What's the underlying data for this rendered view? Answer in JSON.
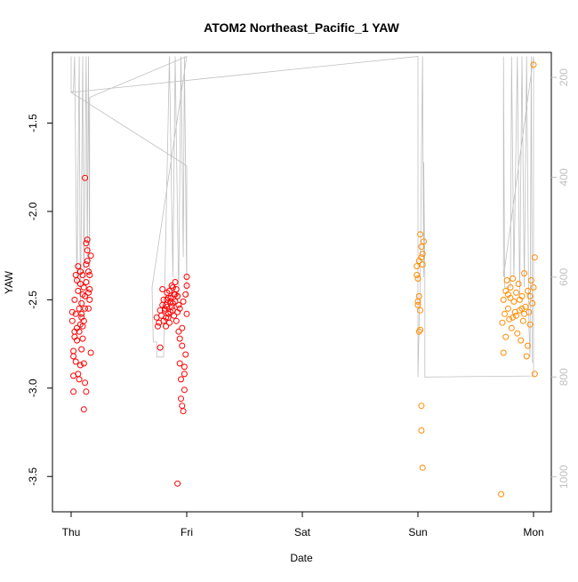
{
  "chart_data": {
    "type": "scatter",
    "title": "ATOM2 Northeast_Pacific_1 YAW",
    "xlabel": "Date",
    "ylabel": "YAW",
    "x_ticks": [
      "Thu",
      "Fri",
      "Sat",
      "Sun",
      "Mon"
    ],
    "xlim": [
      0,
      4.15
    ],
    "ylim": [
      -3.7,
      -1.1
    ],
    "y_ticks": [
      "-1.5",
      "-2.0",
      "-2.5",
      "-3.0",
      "-3.5"
    ],
    "y_tick_values": [
      -1.5,
      -2.0,
      -2.5,
      -3.0,
      -3.5
    ],
    "y2_ticks": [
      "200",
      "400",
      "600",
      "800",
      "1000"
    ],
    "y2_tick_values": [
      200,
      400,
      600,
      800,
      1000
    ],
    "y2lim": [
      150,
      1070
    ],
    "grid": false,
    "colors": {
      "red": "#ff0000",
      "orange": "#ff8c00",
      "line": "#c0c0c0"
    },
    "series": [
      {
        "color": "#ff0000",
        "points": [
          [
            0.01,
            -2.57
          ],
          [
            0.01,
            -2.62
          ],
          [
            0.02,
            -2.79
          ],
          [
            0.02,
            -2.82
          ],
          [
            0.02,
            -2.93
          ],
          [
            0.02,
            -3.02
          ],
          [
            0.03,
            -2.68
          ],
          [
            0.03,
            -2.71
          ],
          [
            0.03,
            -2.5
          ],
          [
            0.04,
            -2.36
          ],
          [
            0.04,
            -2.58
          ],
          [
            0.04,
            -2.85
          ],
          [
            0.05,
            -2.39
          ],
          [
            0.05,
            -2.66
          ],
          [
            0.05,
            -2.73
          ],
          [
            0.06,
            -2.45
          ],
          [
            0.06,
            -2.31
          ],
          [
            0.06,
            -2.92
          ],
          [
            0.07,
            -2.55
          ],
          [
            0.07,
            -2.68
          ],
          [
            0.07,
            -2.95
          ],
          [
            0.08,
            -2.41
          ],
          [
            0.08,
            -2.34
          ],
          [
            0.08,
            -2.87
          ],
          [
            0.09,
            -2.58
          ],
          [
            0.09,
            -2.78
          ],
          [
            0.09,
            -2.6
          ],
          [
            0.1,
            -2.36
          ],
          [
            0.1,
            -2.47
          ],
          [
            0.1,
            -2.65
          ],
          [
            0.11,
            -2.86
          ],
          [
            0.11,
            -3.12
          ],
          [
            0.11,
            -2.62
          ],
          [
            0.12,
            -2.55
          ],
          [
            0.12,
            -2.97
          ],
          [
            0.12,
            -2.48
          ],
          [
            0.13,
            -2.4
          ],
          [
            0.13,
            -2.3
          ],
          [
            0.13,
            -2.18
          ],
          [
            0.14,
            -2.22
          ],
          [
            0.14,
            -2.16
          ],
          [
            0.14,
            -2.28
          ],
          [
            0.15,
            -2.34
          ],
          [
            0.15,
            -2.55
          ],
          [
            0.15,
            -2.46
          ],
          [
            0.16,
            -2.36
          ],
          [
            0.16,
            -2.44
          ],
          [
            0.16,
            -2.5
          ],
          [
            0.17,
            -2.25
          ],
          [
            0.17,
            -2.8
          ],
          [
            0.12,
            -1.81
          ],
          [
            0.1,
            -2.72
          ],
          [
            0.11,
            -2.43
          ],
          [
            0.09,
            -2.52
          ],
          [
            0.08,
            -2.64
          ],
          [
            0.13,
            -3.02
          ],
          [
            0.74,
            -2.6
          ],
          [
            0.75,
            -2.65
          ],
          [
            0.76,
            -2.63
          ],
          [
            0.77,
            -2.56
          ],
          [
            0.78,
            -2.59
          ],
          [
            0.79,
            -2.44
          ],
          [
            0.8,
            -2.62
          ],
          [
            0.81,
            -2.55
          ],
          [
            0.82,
            -2.6
          ],
          [
            0.82,
            -2.53
          ],
          [
            0.83,
            -2.5
          ],
          [
            0.84,
            -2.58
          ],
          [
            0.85,
            -2.45
          ],
          [
            0.85,
            -2.63
          ],
          [
            0.86,
            -2.49
          ],
          [
            0.87,
            -2.54
          ],
          [
            0.87,
            -2.42
          ],
          [
            0.88,
            -2.56
          ],
          [
            0.89,
            -2.47
          ],
          [
            0.89,
            -2.59
          ],
          [
            0.9,
            -2.51
          ],
          [
            0.91,
            -2.62
          ],
          [
            0.91,
            -2.44
          ],
          [
            0.92,
            -2.48
          ],
          [
            0.92,
            -2.57
          ],
          [
            0.93,
            -2.53
          ],
          [
            0.93,
            -2.68
          ],
          [
            0.94,
            -2.72
          ],
          [
            0.94,
            -2.86
          ],
          [
            0.95,
            -2.95
          ],
          [
            0.95,
            -3.06
          ],
          [
            0.96,
            -2.76
          ],
          [
            0.96,
            -2.66
          ],
          [
            0.97,
            -2.51
          ],
          [
            0.97,
            -3.13
          ],
          [
            0.98,
            -2.88
          ],
          [
            0.98,
            -3.01
          ],
          [
            0.99,
            -2.81
          ],
          [
            0.99,
            -2.47
          ],
          [
            1.0,
            -2.42
          ],
          [
            1.0,
            -2.37
          ],
          [
            1.0,
            -2.58
          ],
          [
            0.77,
            -2.77
          ],
          [
            0.92,
            -3.54
          ],
          [
            0.96,
            -3.1
          ],
          [
            0.98,
            -2.92
          ],
          [
            0.83,
            -2.46
          ],
          [
            0.86,
            -2.57
          ],
          [
            0.88,
            -2.43
          ],
          [
            0.9,
            -2.4
          ],
          [
            0.94,
            -2.55
          ],
          [
            0.79,
            -2.53
          ],
          [
            0.8,
            -2.5
          ],
          [
            0.81,
            -2.56
          ],
          [
            0.83,
            -2.54
          ],
          [
            0.84,
            -2.49
          ],
          [
            0.86,
            -2.51
          ],
          [
            0.88,
            -2.52
          ],
          [
            0.9,
            -2.47
          ],
          [
            0.84,
            -2.6
          ],
          [
            0.82,
            -2.65
          ]
        ]
      },
      {
        "color": "#ff8c00",
        "points": [
          [
            2.99,
            -2.31
          ],
          [
            2.99,
            -2.36
          ],
          [
            3.0,
            -2.38
          ],
          [
            3.0,
            -2.53
          ],
          [
            3.01,
            -2.48
          ],
          [
            3.01,
            -2.28
          ],
          [
            3.02,
            -2.13
          ],
          [
            3.02,
            -2.56
          ],
          [
            3.03,
            -2.2
          ],
          [
            3.03,
            -2.26
          ],
          [
            3.04,
            -2.3
          ],
          [
            3.04,
            -2.24
          ],
          [
            3.05,
            -2.17
          ],
          [
            3.01,
            -2.68
          ],
          [
            3.02,
            -2.67
          ],
          [
            3.03,
            -3.1
          ],
          [
            3.03,
            -3.24
          ],
          [
            3.04,
            -3.45
          ],
          [
            3.0,
            -2.51
          ],
          [
            3.73,
            -2.63
          ],
          [
            3.74,
            -2.8
          ],
          [
            3.74,
            -2.5
          ],
          [
            3.75,
            -2.58
          ],
          [
            3.76,
            -2.45
          ],
          [
            3.76,
            -2.71
          ],
          [
            3.77,
            -2.39
          ],
          [
            3.78,
            -2.55
          ],
          [
            3.79,
            -2.61
          ],
          [
            3.8,
            -2.43
          ],
          [
            3.81,
            -2.66
          ],
          [
            3.82,
            -2.38
          ],
          [
            3.83,
            -2.51
          ],
          [
            3.84,
            -2.57
          ],
          [
            3.85,
            -2.46
          ],
          [
            3.86,
            -2.69
          ],
          [
            3.87,
            -2.41
          ],
          [
            3.88,
            -2.56
          ],
          [
            3.89,
            -2.73
          ],
          [
            3.9,
            -2.48
          ],
          [
            3.91,
            -2.62
          ],
          [
            3.92,
            -2.35
          ],
          [
            3.93,
            -2.54
          ],
          [
            3.94,
            -2.82
          ],
          [
            3.95,
            -2.45
          ],
          [
            3.96,
            -2.57
          ],
          [
            3.97,
            -2.64
          ],
          [
            3.98,
            -2.39
          ],
          [
            3.99,
            -2.52
          ],
          [
            4.0,
            -2.43
          ],
          [
            4.01,
            -2.26
          ],
          [
            4.01,
            -2.92
          ],
          [
            4.0,
            -1.17
          ],
          [
            3.72,
            -3.6
          ],
          [
            3.95,
            -2.76
          ],
          [
            3.85,
            -2.59
          ],
          [
            3.78,
            -2.47
          ],
          [
            3.82,
            -2.6
          ],
          [
            3.88,
            -2.5
          ],
          [
            3.92,
            -2.58
          ],
          [
            3.97,
            -2.48
          ],
          [
            3.9,
            -2.55
          ],
          [
            3.8,
            -2.49
          ]
        ]
      }
    ],
    "line_series": {
      "color": "#c0c0c0",
      "points": [
        [
          0.0,
          158
        ],
        [
          0.0,
          230
        ],
        [
          0.02,
          228
        ],
        [
          0.03,
          158
        ],
        [
          0.05,
          620
        ],
        [
          0.07,
          158
        ],
        [
          0.08,
          700
        ],
        [
          0.1,
          158
        ],
        [
          0.11,
          620
        ],
        [
          0.13,
          158
        ],
        [
          0.14,
          560
        ],
        [
          0.15,
          158
        ],
        [
          0.16,
          620
        ],
        [
          0.16,
          240
        ],
        [
          1.0,
          158
        ],
        [
          0.7,
          620
        ],
        [
          0.71,
          730
        ],
        [
          0.74,
          730
        ],
        [
          0.74,
          760
        ],
        [
          0.8,
          760
        ],
        [
          0.81,
          620
        ],
        [
          0.85,
          158
        ],
        [
          0.88,
          600
        ],
        [
          0.9,
          158
        ],
        [
          0.93,
          640
        ],
        [
          0.95,
          158
        ],
        [
          0.97,
          560
        ],
        [
          0.98,
          158
        ],
        [
          1.0,
          640
        ],
        [
          1.0,
          377
        ],
        [
          0.0,
          230
        ],
        [
          3.0,
          158
        ],
        [
          3.0,
          800
        ],
        [
          3.02,
          600
        ],
        [
          3.04,
          158
        ],
        [
          3.05,
          600
        ],
        [
          3.05,
          370
        ],
        [
          3.06,
          600
        ],
        [
          3.06,
          800
        ],
        [
          4.0,
          798
        ],
        [
          4.0,
          158
        ],
        [
          3.74,
          600
        ],
        [
          3.74,
          158
        ],
        [
          3.75,
          620
        ],
        [
          3.8,
          620
        ],
        [
          3.81,
          158
        ],
        [
          3.83,
          600
        ],
        [
          3.86,
          158
        ],
        [
          3.88,
          640
        ],
        [
          3.9,
          158
        ],
        [
          3.92,
          620
        ],
        [
          3.94,
          158
        ],
        [
          3.96,
          700
        ],
        [
          3.97,
          760
        ],
        [
          3.98,
          158
        ],
        [
          3.99,
          770
        ],
        [
          4.0,
          770
        ]
      ]
    }
  }
}
